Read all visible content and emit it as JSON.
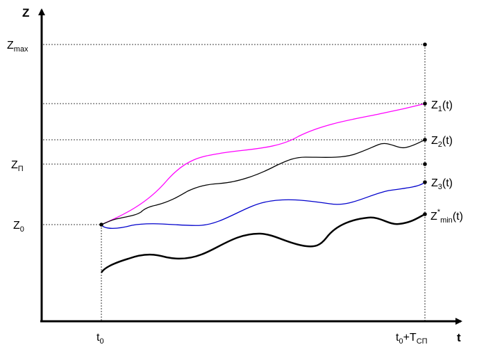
{
  "axes": {
    "y_label": "Z",
    "x_label": "t"
  },
  "y_marks": {
    "zmax": {
      "main": "Z",
      "sub": "max"
    },
    "zp": {
      "main": "Z",
      "sub": "П"
    },
    "z0": {
      "main": "Z",
      "sub": "0"
    }
  },
  "x_marks": {
    "t0": {
      "main": "t",
      "sub": "0"
    },
    "tend": {
      "main": "t",
      "sub": "0",
      "rest": "+T",
      "sub2": "СП"
    }
  },
  "curves": {
    "z1": {
      "main": "Z",
      "sub": "1",
      "tail": "(t)",
      "color": "#ff00ff"
    },
    "z2": {
      "main": "Z",
      "sub": "2",
      "tail": "(t)",
      "color": "#000000"
    },
    "z3": {
      "main": "Z",
      "sub": "3",
      "tail": "(t)",
      "color": "#0000cc"
    },
    "zmin": {
      "main": "Z",
      "sup": "*",
      "sub": "min",
      "tail": "(t)",
      "color": "#000000"
    }
  }
}
